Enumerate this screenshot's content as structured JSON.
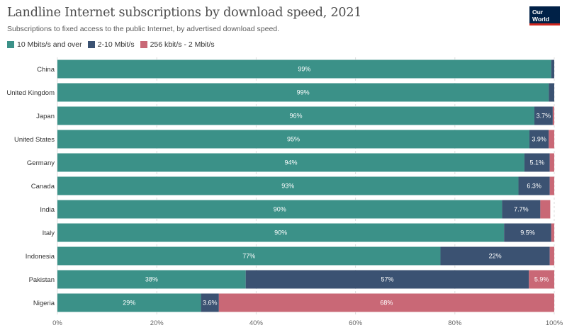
{
  "header": {
    "title": "Landline Internet subscriptions by download speed, 2021",
    "subtitle": "Subscriptions to fixed access to the public Internet, by advertised download speed.",
    "logo_line1": "Our World",
    "logo_line2": "in Data"
  },
  "chart_data": {
    "type": "bar",
    "orientation": "horizontal",
    "stacked": true,
    "title": "Landline Internet subscriptions by download speed, 2021",
    "subtitle": "Subscriptions to fixed access to the public Internet, by advertised download speed.",
    "categories": [
      "China",
      "United Kingdom",
      "Japan",
      "United States",
      "Germany",
      "Canada",
      "India",
      "Italy",
      "Indonesia",
      "Pakistan",
      "Nigeria"
    ],
    "series": [
      {
        "name": "10 Mbits/s and over",
        "color": "#3b9188",
        "values": [
          99.4,
          98.9,
          96.0,
          95.0,
          94.0,
          92.8,
          89.5,
          89.9,
          77.1,
          37.9,
          28.9
        ],
        "labels": [
          "99%",
          "99%",
          "96%",
          "95%",
          "94%",
          "93%",
          "90%",
          "90%",
          "77%",
          "38%",
          "29%"
        ]
      },
      {
        "name": "2-10 Mbit/s",
        "color": "#3b5272",
        "values": [
          0.6,
          1.1,
          3.7,
          3.9,
          5.1,
          6.3,
          7.7,
          9.5,
          22.0,
          57.0,
          3.6
        ],
        "labels": [
          "",
          "",
          "3.7%",
          "3.9%",
          "5.1%",
          "6.3%",
          "7.7%",
          "9.5%",
          "22%",
          "57%",
          "3.6%"
        ]
      },
      {
        "name": "256 kbit/s - 2 Mbit/s",
        "color": "#c96876",
        "values": [
          0.0,
          0.0,
          0.3,
          1.1,
          0.9,
          0.9,
          2.0,
          0.6,
          0.9,
          5.9,
          68.0
        ],
        "labels": [
          "",
          "",
          "",
          "",
          "",
          "",
          "",
          "",
          "",
          "5.9%",
          "68%"
        ]
      }
    ],
    "xlim": [
      0,
      100
    ],
    "xticks": [
      "0%",
      "20%",
      "40%",
      "60%",
      "80%",
      "100%"
    ],
    "xtick_values": [
      0,
      20,
      40,
      60,
      80,
      100
    ],
    "grid": "vertical dashed",
    "legend": "top-left"
  }
}
